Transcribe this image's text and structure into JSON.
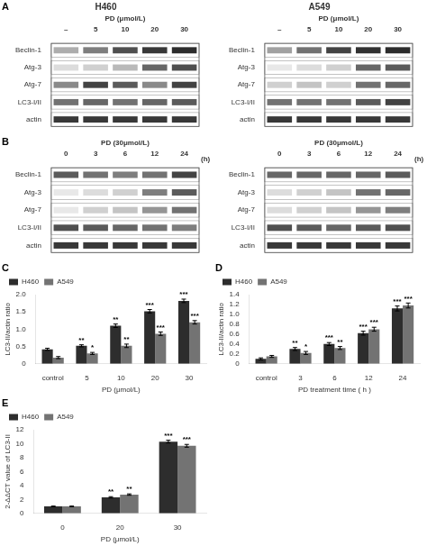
{
  "chart_data": [
    {
      "type": "heatmap",
      "title": "H460",
      "panel_label": "A",
      "xlabel": "PD (μmol/L)",
      "x": [
        "–",
        "5",
        "10",
        "20",
        "30"
      ],
      "y": [
        "Beclin-1",
        "Atg-3",
        "Atg-7",
        "LC3-I/II",
        "actin"
      ],
      "values": [
        [
          0.35,
          0.55,
          0.75,
          0.85,
          0.9
        ],
        [
          0.15,
          0.2,
          0.3,
          0.65,
          0.75
        ],
        [
          0.5,
          0.8,
          0.7,
          0.5,
          0.8
        ],
        [
          0.6,
          0.65,
          0.6,
          0.65,
          0.7
        ],
        [
          0.85,
          0.85,
          0.85,
          0.85,
          0.85
        ]
      ],
      "grid": false
    },
    {
      "type": "heatmap",
      "title": "A549",
      "xlabel": "PD (μmol/L)",
      "x": [
        "–",
        "5",
        "10",
        "20",
        "30"
      ],
      "y": [
        "Beclin-1",
        "Atg-3",
        "Atg-7",
        "LC3-I/II",
        "actin"
      ],
      "values": [
        [
          0.4,
          0.6,
          0.8,
          0.88,
          0.9
        ],
        [
          0.1,
          0.15,
          0.2,
          0.65,
          0.7
        ],
        [
          0.2,
          0.25,
          0.2,
          0.6,
          0.65
        ],
        [
          0.6,
          0.6,
          0.6,
          0.7,
          0.8
        ],
        [
          0.85,
          0.85,
          0.85,
          0.85,
          0.85
        ]
      ],
      "grid": false
    },
    {
      "type": "heatmap",
      "panel_label": "B",
      "xlabel": "PD (30μmol/L)",
      "xunit": "(h)",
      "x": [
        "0",
        "3",
        "6",
        "12",
        "24"
      ],
      "y": [
        "Beclin-1",
        "Atg-3",
        "Atg-7",
        "LC3-I/II",
        "actin"
      ],
      "values": [
        [
          0.7,
          0.6,
          0.55,
          0.6,
          0.8
        ],
        [
          0.1,
          0.15,
          0.2,
          0.55,
          0.7
        ],
        [
          0.1,
          0.2,
          0.25,
          0.45,
          0.6
        ],
        [
          0.75,
          0.7,
          0.65,
          0.6,
          0.55
        ],
        [
          0.85,
          0.85,
          0.85,
          0.85,
          0.85
        ]
      ],
      "grid": false
    },
    {
      "type": "heatmap",
      "xlabel": "PD (30μmol/L)",
      "xunit": "(h)",
      "x": [
        "0",
        "3",
        "6",
        "12",
        "24"
      ],
      "y": [
        "Beclin-1",
        "Atg-3",
        "Atg-7",
        "LC3-I/II",
        "actin"
      ],
      "values": [
        [
          0.65,
          0.65,
          0.65,
          0.65,
          0.7
        ],
        [
          0.15,
          0.2,
          0.25,
          0.6,
          0.65
        ],
        [
          0.15,
          0.2,
          0.25,
          0.45,
          0.55
        ],
        [
          0.75,
          0.7,
          0.65,
          0.7,
          0.75
        ],
        [
          0.85,
          0.85,
          0.85,
          0.85,
          0.85
        ]
      ],
      "grid": false
    },
    {
      "type": "bar",
      "panel_label": "C",
      "categories": [
        "control",
        "5",
        "10",
        "20",
        "30"
      ],
      "xlabel": "PD (μmol/L)",
      "ylabel": "LC3-II/actin ratio",
      "ylim": [
        0,
        2.0
      ],
      "yticks": [
        0,
        0.5,
        {
          "value": 1.0,
          "label": "1.0"
        },
        1.5,
        {
          "value": 2.0,
          "label": "2.0"
        }
      ],
      "grid": false,
      "legend": "upper left",
      "series": [
        {
          "name": "H460",
          "color": "#2d2d2d",
          "values": [
            0.42,
            0.52,
            1.1,
            1.52,
            1.82
          ],
          "errors": [
            0.03,
            0.03,
            0.05,
            0.05,
            0.05
          ],
          "stars": [
            null,
            "**",
            "**",
            "***",
            "***"
          ]
        },
        {
          "name": "A549",
          "color": "#737373",
          "values": [
            0.18,
            0.3,
            0.52,
            0.87,
            1.2
          ],
          "errors": [
            0.03,
            0.03,
            0.05,
            0.05,
            0.05
          ],
          "stars": [
            null,
            "*",
            "**",
            "***",
            "***"
          ]
        }
      ]
    },
    {
      "type": "bar",
      "panel_label": "D",
      "categories": [
        "control",
        "3",
        "6",
        "12",
        "24"
      ],
      "xlabel": "PD treatment time ( h )",
      "ylabel": "LC3-II/actin ratio",
      "ylim": [
        0,
        1.4
      ],
      "yticks": [
        0,
        0.2,
        0.4,
        0.6,
        0.8,
        {
          "value": 1.0,
          "label": "1.0"
        },
        1.2,
        1.4
      ],
      "grid": false,
      "legend": "upper left",
      "series": [
        {
          "name": "H460",
          "color": "#2d2d2d",
          "values": [
            0.1,
            0.3,
            0.4,
            0.62,
            1.12
          ],
          "errors": [
            0.02,
            0.03,
            0.03,
            0.04,
            0.05
          ],
          "stars": [
            null,
            "**",
            "***",
            "***",
            "***"
          ]
        },
        {
          "name": "A549",
          "color": "#737373",
          "values": [
            0.15,
            0.22,
            0.32,
            0.7,
            1.18
          ],
          "errors": [
            0.02,
            0.03,
            0.03,
            0.04,
            0.05
          ],
          "stars": [
            null,
            "*",
            "**",
            "***",
            "***"
          ]
        }
      ]
    },
    {
      "type": "bar",
      "panel_label": "E",
      "categories": [
        "0",
        "20",
        "30"
      ],
      "xlabel": "PD (μmol/L)",
      "ylabel": "2-ΔΔCT value of LC3-II",
      "ylim": [
        0,
        12
      ],
      "yticks": [
        0,
        2,
        4,
        6,
        8,
        10,
        12
      ],
      "grid": false,
      "legend": "upper left",
      "series": [
        {
          "name": "H460",
          "color": "#2d2d2d",
          "values": [
            1.0,
            2.3,
            10.3
          ],
          "errors": [
            0.05,
            0.1,
            0.2
          ],
          "stars": [
            null,
            "**",
            "***"
          ]
        },
        {
          "name": "A549",
          "color": "#737373",
          "values": [
            1.0,
            2.7,
            9.7
          ],
          "errors": [
            0.05,
            0.1,
            0.2
          ],
          "stars": [
            null,
            "**",
            "***"
          ]
        }
      ]
    }
  ]
}
